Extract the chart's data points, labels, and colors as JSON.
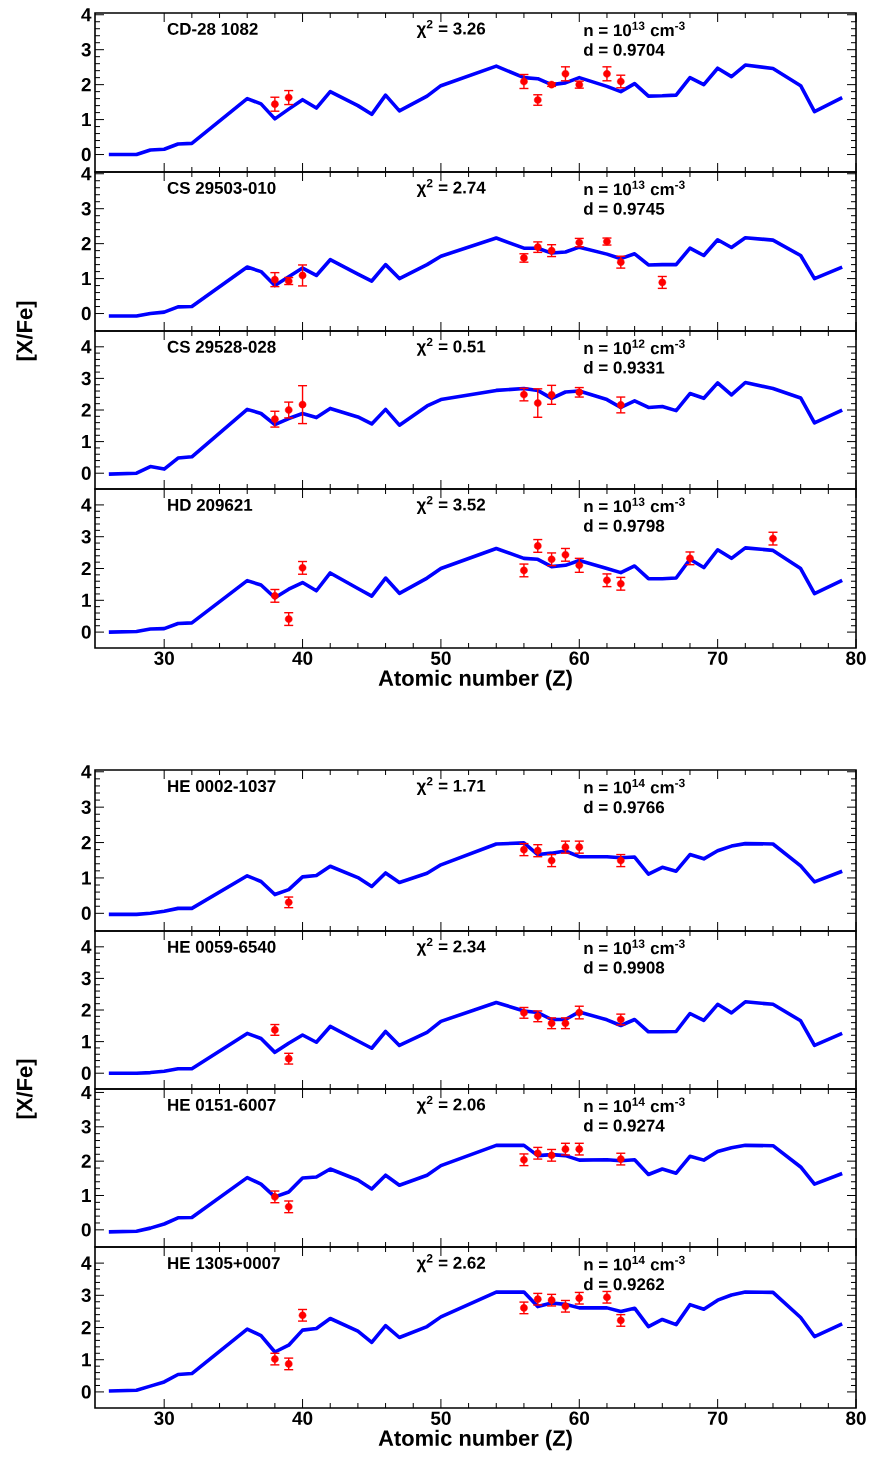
{
  "chart_data": [
    {
      "type": "line",
      "title": "CD-28 1082",
      "annotations": [
        "χ$^{2}$ = 3.26",
        "n = 10$^{13}$ cm$^{-3}$",
        "d = 0.9704"
      ],
      "xlim": [
        25,
        80
      ],
      "ylim": [
        -0.5,
        4.05
      ],
      "xticks": [
        30,
        40,
        50,
        60,
        70,
        80
      ],
      "yticks": [
        0,
        1,
        2,
        3,
        4
      ],
      "tick_labels": "y",
      "series": [
        {
          "type": "line",
          "marker": "none",
          "color": "#0000ff",
          "x": [
            26,
            28,
            29,
            30,
            31,
            32,
            36,
            37,
            38,
            39,
            40,
            41,
            42,
            44,
            45,
            46,
            47,
            49,
            50,
            54,
            56,
            57,
            58,
            59,
            60,
            62,
            63,
            64,
            65,
            66,
            67,
            68,
            69,
            70,
            71,
            72,
            74,
            76,
            77,
            79
          ],
          "values": [
            0,
            0,
            0.13,
            0.15,
            0.3,
            0.32,
            1.6,
            1.45,
            1.02,
            1.3,
            1.57,
            1.33,
            1.8,
            1.4,
            1.15,
            1.7,
            1.25,
            1.67,
            1.97,
            2.53,
            2.2,
            2.17,
            2.0,
            2.05,
            2.2,
            1.95,
            1.8,
            2.03,
            1.67,
            1.68,
            1.7,
            2.2,
            2.0,
            2.47,
            2.23,
            2.56,
            2.46,
            1.97,
            1.23,
            1.63
          ]
        },
        {
          "type": "scatter",
          "marker": "circle",
          "color": "#ff0000",
          "x": [
            38,
            39,
            56,
            57,
            58,
            59,
            60,
            62,
            63
          ],
          "values": [
            1.44,
            1.63,
            2.09,
            1.56,
            2.0,
            2.31,
            2.0,
            2.31,
            2.09
          ],
          "errors": [
            0.2,
            0.2,
            0.2,
            0.15,
            0.05,
            0.2,
            0.1,
            0.2,
            0.18
          ]
        }
      ]
    },
    {
      "type": "line",
      "title": "CS 29503-010",
      "ylabel": "[X/Fe]",
      "annotations": [
        "χ$^{2}$ = 2.74",
        "n = 10$^{13}$ cm$^{-3}$",
        "d = 0.9745"
      ],
      "xlim": [
        25,
        80
      ],
      "ylim": [
        -0.5,
        4.05
      ],
      "xticks": [
        30,
        40,
        50,
        60,
        70,
        80
      ],
      "yticks": [
        0,
        1,
        2,
        3,
        4
      ],
      "tick_labels": "y",
      "series": [
        {
          "type": "line",
          "marker": "none",
          "color": "#0000ff",
          "x": [
            26,
            28,
            29,
            30,
            31,
            32,
            36,
            37,
            38,
            39,
            40,
            41,
            42,
            44,
            45,
            46,
            47,
            49,
            50,
            54,
            56,
            57,
            58,
            59,
            60,
            62,
            63,
            64,
            65,
            66,
            67,
            68,
            69,
            70,
            71,
            72,
            74,
            76,
            77,
            79
          ],
          "values": [
            -0.07,
            -0.07,
            0.0,
            0.04,
            0.19,
            0.2,
            1.33,
            1.2,
            0.8,
            1.05,
            1.3,
            1.09,
            1.54,
            1.13,
            0.93,
            1.4,
            1.0,
            1.4,
            1.64,
            2.16,
            1.87,
            1.87,
            1.73,
            1.76,
            1.9,
            1.7,
            1.57,
            1.71,
            1.39,
            1.4,
            1.4,
            1.87,
            1.66,
            2.11,
            1.89,
            2.17,
            2.1,
            1.66,
            1.0,
            1.33
          ]
        },
        {
          "type": "scatter",
          "marker": "circle",
          "color": "#ff0000",
          "x": [
            38,
            39,
            40,
            56,
            57,
            58,
            60,
            62,
            63,
            66
          ],
          "values": [
            0.97,
            0.93,
            1.09,
            1.59,
            1.9,
            1.8,
            2.03,
            2.06,
            1.47,
            0.89
          ],
          "errors": [
            0.2,
            0.1,
            0.3,
            0.12,
            0.15,
            0.17,
            0.12,
            0.1,
            0.17,
            0.17
          ]
        }
      ]
    },
    {
      "type": "line",
      "title": "CS 29528-028",
      "annotations": [
        "χ$^{2}$ = 0.51",
        "n = 10$^{12}$ cm$^{-3}$",
        "d = 0.9331"
      ],
      "xlim": [
        25,
        80
      ],
      "ylim": [
        -0.5,
        4.5
      ],
      "xticks": [
        30,
        40,
        50,
        60,
        70,
        80
      ],
      "yticks": [
        0,
        1,
        2,
        3,
        4
      ],
      "tick_labels": "y",
      "series": [
        {
          "type": "line",
          "marker": "none",
          "color": "#0000ff",
          "x": [
            26,
            28,
            29,
            30,
            31,
            32,
            36,
            37,
            38,
            39,
            40,
            41,
            42,
            44,
            45,
            46,
            47,
            49,
            50,
            54,
            56,
            57,
            58,
            59,
            60,
            62,
            63,
            64,
            65,
            66,
            67,
            68,
            69,
            70,
            71,
            72,
            74,
            76,
            77,
            79
          ],
          "values": [
            -0.03,
            0,
            0.21,
            0.13,
            0.48,
            0.52,
            2.02,
            1.89,
            1.54,
            1.73,
            1.89,
            1.76,
            2.05,
            1.78,
            1.56,
            2.02,
            1.52,
            2.13,
            2.33,
            2.62,
            2.68,
            2.62,
            2.37,
            2.57,
            2.6,
            2.33,
            2.08,
            2.29,
            2.08,
            2.11,
            1.98,
            2.52,
            2.37,
            2.86,
            2.48,
            2.87,
            2.68,
            2.38,
            1.59,
            2.0
          ]
        },
        {
          "type": "scatter",
          "marker": "circle",
          "color": "#ff0000",
          "x": [
            38,
            39,
            40,
            56,
            57,
            58,
            60,
            63
          ],
          "values": [
            1.71,
            2.0,
            2.17,
            2.49,
            2.22,
            2.48,
            2.56,
            2.16
          ],
          "errors": [
            0.25,
            0.25,
            0.6,
            0.2,
            0.45,
            0.3,
            0.15,
            0.25
          ]
        }
      ]
    },
    {
      "type": "line",
      "title": "HD 209621",
      "xlabel": "Atomic number (Z)",
      "annotations": [
        "χ$^{2}$ = 3.52",
        "n = 10$^{13}$ cm$^{-3}$",
        "d = 0.9798"
      ],
      "xlim": [
        25,
        80
      ],
      "ylim": [
        -0.5,
        4.5
      ],
      "xticks": [
        30,
        40,
        50,
        60,
        70,
        80
      ],
      "yticks": [
        0,
        1,
        2,
        3,
        4
      ],
      "series": [
        {
          "type": "line",
          "marker": "none",
          "color": "#0000ff",
          "x": [
            26,
            28,
            29,
            30,
            31,
            32,
            36,
            37,
            38,
            39,
            40,
            41,
            42,
            44,
            45,
            46,
            47,
            49,
            50,
            54,
            56,
            57,
            58,
            59,
            60,
            62,
            63,
            64,
            65,
            66,
            67,
            68,
            69,
            70,
            71,
            72,
            74,
            76,
            77,
            79
          ],
          "values": [
            0,
            0.02,
            0.1,
            0.11,
            0.27,
            0.29,
            1.62,
            1.48,
            1.08,
            1.35,
            1.56,
            1.3,
            1.86,
            1.37,
            1.13,
            1.7,
            1.22,
            1.7,
            2.0,
            2.63,
            2.32,
            2.29,
            2.06,
            2.1,
            2.25,
            2.0,
            1.87,
            2.08,
            1.68,
            1.68,
            1.7,
            2.29,
            2.03,
            2.59,
            2.32,
            2.65,
            2.57,
            2.0,
            1.21,
            1.63
          ]
        },
        {
          "type": "scatter",
          "marker": "circle",
          "color": "#ff0000",
          "x": [
            38,
            39,
            40,
            56,
            57,
            58,
            59,
            60,
            62,
            63,
            68,
            74
          ],
          "values": [
            1.14,
            0.41,
            2.02,
            1.94,
            2.71,
            2.29,
            2.43,
            2.1,
            1.63,
            1.52,
            2.32,
            2.94
          ],
          "errors": [
            0.2,
            0.2,
            0.2,
            0.2,
            0.2,
            0.2,
            0.2,
            0.22,
            0.2,
            0.2,
            0.2,
            0.2
          ]
        }
      ]
    },
    {
      "type": "line",
      "title": "HE 0002-1037",
      "annotations": [
        "χ$^{2}$ = 1.71",
        "n = 10$^{14}$ cm$^{-3}$",
        "d = 0.9766"
      ],
      "xlim": [
        25,
        80
      ],
      "ylim": [
        -0.5,
        4.05
      ],
      "xticks": [
        30,
        40,
        50,
        60,
        70,
        80
      ],
      "yticks": [
        0,
        1,
        2,
        3,
        4
      ],
      "tick_labels": "y",
      "series": [
        {
          "type": "line",
          "marker": "none",
          "color": "#0000ff",
          "x": [
            26,
            28,
            29,
            30,
            31,
            32,
            36,
            37,
            38,
            39,
            40,
            41,
            42,
            44,
            45,
            46,
            47,
            49,
            50,
            54,
            56,
            57,
            58,
            59,
            60,
            62,
            63,
            64,
            65,
            66,
            67,
            68,
            69,
            70,
            71,
            72,
            74,
            76,
            77,
            79
          ],
          "values": [
            -0.03,
            -0.03,
            0,
            0.06,
            0.14,
            0.14,
            1.06,
            0.9,
            0.53,
            0.67,
            1.03,
            1.07,
            1.33,
            1.01,
            0.76,
            1.14,
            0.87,
            1.13,
            1.37,
            1.96,
            1.99,
            1.66,
            1.7,
            1.76,
            1.6,
            1.6,
            1.57,
            1.59,
            1.11,
            1.3,
            1.19,
            1.66,
            1.54,
            1.77,
            1.9,
            1.97,
            1.96,
            1.34,
            0.89,
            1.19
          ]
        },
        {
          "type": "scatter",
          "marker": "circle",
          "color": "#ff0000",
          "x": [
            39,
            56,
            57,
            58,
            59,
            60,
            63
          ],
          "values": [
            0.31,
            1.8,
            1.77,
            1.49,
            1.87,
            1.87,
            1.49
          ],
          "errors": [
            0.15,
            0.17,
            0.17,
            0.17,
            0.17,
            0.17,
            0.17
          ]
        }
      ]
    },
    {
      "type": "line",
      "title": "HE 0059-6540",
      "ylabel": "[X/Fe]",
      "annotations": [
        "χ$^{2}$ = 2.34",
        "n = 10$^{13}$ cm$^{-3}$",
        "d = 0.9908"
      ],
      "xlim": [
        25,
        80
      ],
      "ylim": [
        -0.5,
        4.5
      ],
      "xticks": [
        30,
        40,
        50,
        60,
        70,
        80
      ],
      "yticks": [
        0,
        1,
        2,
        3,
        4
      ],
      "tick_labels": "y",
      "series": [
        {
          "type": "line",
          "marker": "none",
          "color": "#0000ff",
          "x": [
            26,
            28,
            29,
            30,
            31,
            32,
            36,
            37,
            38,
            39,
            40,
            41,
            42,
            44,
            45,
            46,
            47,
            49,
            50,
            54,
            56,
            57,
            58,
            59,
            60,
            62,
            63,
            64,
            65,
            66,
            67,
            68,
            69,
            70,
            71,
            72,
            74,
            76,
            77,
            79
          ],
          "values": [
            0,
            0,
            0.02,
            0.06,
            0.14,
            0.14,
            1.26,
            1.1,
            0.66,
            0.95,
            1.21,
            0.98,
            1.48,
            1.02,
            0.79,
            1.32,
            0.88,
            1.29,
            1.64,
            2.24,
            1.97,
            1.92,
            1.7,
            1.7,
            1.94,
            1.69,
            1.51,
            1.7,
            1.31,
            1.31,
            1.32,
            1.89,
            1.67,
            2.18,
            1.91,
            2.26,
            2.18,
            1.66,
            0.88,
            1.26
          ]
        },
        {
          "type": "scatter",
          "marker": "circle",
          "color": "#ff0000",
          "x": [
            38,
            39,
            56,
            57,
            58,
            59,
            60,
            63
          ],
          "values": [
            1.37,
            0.46,
            1.91,
            1.8,
            1.58,
            1.58,
            1.92,
            1.7
          ],
          "errors": [
            0.17,
            0.17,
            0.17,
            0.17,
            0.17,
            0.17,
            0.2,
            0.17
          ]
        }
      ]
    },
    {
      "type": "line",
      "title": "HE 0151-6007",
      "annotations": [
        "χ$^{2}$ = 2.06",
        "n = 10$^{14}$ cm$^{-3}$",
        "d = 0.9274"
      ],
      "xlim": [
        25,
        80
      ],
      "ylim": [
        -0.5,
        4.1
      ],
      "xticks": [
        30,
        40,
        50,
        60,
        70,
        80
      ],
      "yticks": [
        0,
        1,
        2,
        3,
        4
      ],
      "tick_labels": "y",
      "series": [
        {
          "type": "line",
          "marker": "none",
          "color": "#0000ff",
          "x": [
            26,
            28,
            29,
            30,
            31,
            32,
            36,
            37,
            38,
            39,
            40,
            41,
            42,
            44,
            45,
            46,
            47,
            49,
            50,
            54,
            56,
            57,
            58,
            59,
            60,
            62,
            63,
            64,
            65,
            66,
            67,
            68,
            69,
            70,
            71,
            72,
            74,
            76,
            77,
            79
          ],
          "values": [
            -0.06,
            -0.04,
            0.05,
            0.17,
            0.35,
            0.36,
            1.52,
            1.33,
            0.96,
            1.1,
            1.51,
            1.54,
            1.77,
            1.45,
            1.19,
            1.59,
            1.3,
            1.59,
            1.87,
            2.46,
            2.46,
            2.16,
            2.19,
            2.16,
            2.03,
            2.04,
            2.01,
            2.04,
            1.61,
            1.77,
            1.65,
            2.14,
            2.03,
            2.28,
            2.39,
            2.46,
            2.45,
            1.83,
            1.33,
            1.64
          ]
        },
        {
          "type": "scatter",
          "marker": "circle",
          "color": "#ff0000",
          "x": [
            38,
            39,
            56,
            57,
            58,
            59,
            60,
            63
          ],
          "values": [
            0.96,
            0.67,
            2.04,
            2.23,
            2.17,
            2.35,
            2.35,
            2.06
          ],
          "errors": [
            0.17,
            0.17,
            0.17,
            0.17,
            0.17,
            0.17,
            0.17,
            0.17
          ]
        }
      ]
    },
    {
      "type": "line",
      "title": "HE 1305+0007",
      "xlabel": "Atomic number (Z)",
      "annotations": [
        "χ$^{2}$ = 2.62",
        "n = 10$^{14}$ cm$^{-3}$",
        "d = 0.9262"
      ],
      "xlim": [
        25,
        80
      ],
      "ylim": [
        -0.5,
        4.5
      ],
      "xticks": [
        30,
        40,
        50,
        60,
        70,
        80
      ],
      "yticks": [
        0,
        1,
        2,
        3,
        4
      ],
      "series": [
        {
          "type": "line",
          "marker": "none",
          "color": "#0000ff",
          "x": [
            26,
            28,
            29,
            30,
            31,
            32,
            36,
            37,
            38,
            39,
            40,
            41,
            42,
            44,
            45,
            46,
            47,
            49,
            50,
            54,
            56,
            57,
            58,
            59,
            60,
            62,
            63,
            64,
            65,
            66,
            67,
            68,
            69,
            70,
            71,
            72,
            74,
            76,
            77,
            79
          ],
          "values": [
            0.03,
            0.05,
            0.18,
            0.31,
            0.54,
            0.57,
            1.95,
            1.75,
            1.24,
            1.45,
            1.92,
            1.97,
            2.28,
            1.89,
            1.54,
            2.06,
            1.69,
            2.03,
            2.33,
            3.1,
            3.1,
            2.65,
            2.76,
            2.72,
            2.61,
            2.61,
            2.5,
            2.6,
            2.03,
            2.25,
            2.09,
            2.71,
            2.57,
            2.85,
            3.01,
            3.1,
            3.09,
            2.31,
            1.72,
            2.11
          ]
        },
        {
          "type": "scatter",
          "marker": "circle",
          "color": "#ff0000",
          "x": [
            38,
            39,
            40,
            56,
            57,
            58,
            59,
            60,
            62,
            63
          ],
          "values": [
            1.02,
            0.87,
            2.38,
            2.61,
            2.88,
            2.85,
            2.66,
            2.91,
            2.94,
            2.22
          ],
          "errors": [
            0.18,
            0.18,
            0.18,
            0.18,
            0.18,
            0.18,
            0.18,
            0.18,
            0.18,
            0.18
          ]
        }
      ]
    }
  ]
}
